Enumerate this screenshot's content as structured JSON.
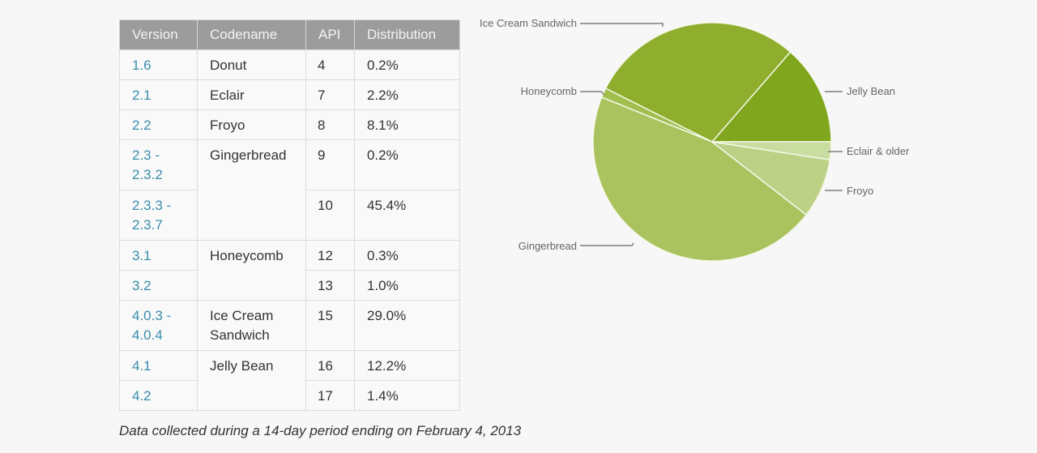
{
  "table": {
    "headers": [
      "Version",
      "Codename",
      "API",
      "Distribution"
    ],
    "rows": [
      {
        "version": "1.6",
        "codename": "Donut",
        "api": "4",
        "distribution": "0.2%"
      },
      {
        "version": "2.1",
        "codename": "Eclair",
        "api": "7",
        "distribution": "2.2%"
      },
      {
        "version": "2.2",
        "codename": "Froyo",
        "api": "8",
        "distribution": "8.1%"
      },
      {
        "version": "2.3 - 2.3.2",
        "codename": "Gingerbread",
        "api": "9",
        "distribution": "0.2%"
      },
      {
        "version": "2.3.3 - 2.3.7",
        "codename": "",
        "api": "10",
        "distribution": "45.4%"
      },
      {
        "version": "3.1",
        "codename": "Honeycomb",
        "api": "12",
        "distribution": "0.3%"
      },
      {
        "version": "3.2",
        "codename": "",
        "api": "13",
        "distribution": "1.0%"
      },
      {
        "version": "4.0.3 - 4.0.4",
        "codename": "Ice Cream Sandwich",
        "api": "15",
        "distribution": "29.0%"
      },
      {
        "version": "4.1",
        "codename": "Jelly Bean",
        "api": "16",
        "distribution": "12.2%"
      },
      {
        "version": "4.2",
        "codename": "",
        "api": "17",
        "distribution": "1.4%"
      }
    ]
  },
  "caption": "Data collected during a 14-day period ending on February 4, 2013",
  "chart_data": {
    "type": "pie",
    "title": "",
    "categories": [
      "Jelly Bean",
      "Ice Cream Sandwich",
      "Honeycomb",
      "Gingerbread",
      "Froyo",
      "Eclair & older"
    ],
    "values": [
      13.6,
      29.0,
      1.3,
      45.6,
      8.1,
      2.4
    ],
    "colors": [
      "#7fa61d",
      "#8fae2d",
      "#a0bf4d",
      "#abc35f",
      "#bdd186",
      "#cadda0"
    ],
    "legend": "leader-line labels around pie"
  },
  "labels": {
    "jelly_bean": "Jelly Bean",
    "ice_cream_sandwich": "Ice Cream Sandwich",
    "honeycomb": "Honeycomb",
    "gingerbread": "Gingerbread",
    "froyo": "Froyo",
    "eclair_older": "Eclair & older"
  }
}
